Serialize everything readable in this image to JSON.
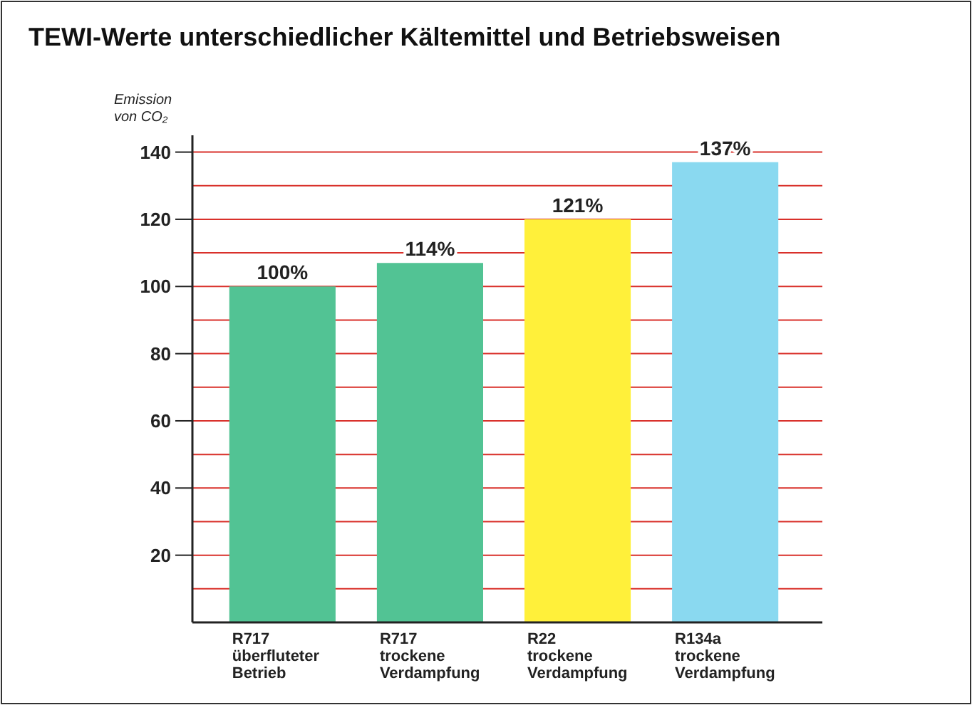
{
  "chart_data": {
    "type": "bar",
    "title": "TEWI-Werte unterschiedlicher Kältemittel und Betriebsweisen",
    "ylabel": "Emission von CO₂",
    "categories": [
      "R717\nüberfluteter\nBetrieb",
      "R717\ntrockene\nVerdampfung",
      "R22\ntrockene\nVerdampfung",
      "R134a\ntrockene\nVerdampfung"
    ],
    "values": [
      100,
      107,
      120,
      137
    ],
    "colors": [
      "#52c394",
      "#52c394",
      "#fff03a",
      "#8ad9f0"
    ],
    "annotations": [
      {
        "text": "100%",
        "x": "R717\nüberfluteter\nBetrieb",
        "y": 100
      },
      {
        "text": "114%",
        "x": "R717\ntrockene\nVerdampfung",
        "y": 107
      },
      {
        "text": "121%",
        "x": "R22\ntrockene\nVerdampfung",
        "y": 120
      },
      {
        "text": "137%",
        "x": "R134a\ntrockene\nVerdampfung",
        "y": 137
      }
    ],
    "ylim": [
      0,
      145
    ],
    "yticks": [
      {
        "value": 10,
        "label": null
      },
      20,
      {
        "value": 30,
        "label": null
      },
      40,
      {
        "value": 50,
        "label": null
      },
      60,
      {
        "value": 70,
        "label": null
      },
      80,
      {
        "value": 90,
        "label": null
      },
      100,
      {
        "value": 110,
        "label": null
      },
      120,
      {
        "value": 130,
        "label": null
      },
      140
    ],
    "grid": true
  }
}
